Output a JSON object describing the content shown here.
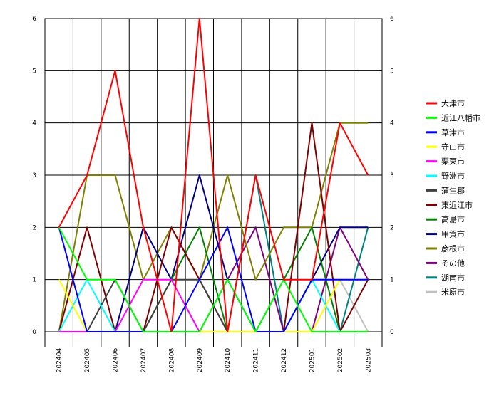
{
  "chart_data": {
    "type": "line",
    "categories": [
      "202404",
      "202405",
      "202406",
      "202407",
      "202408",
      "202409",
      "202410",
      "202411",
      "202412",
      "202501",
      "202502",
      "202503"
    ],
    "ylim": [
      0,
      6
    ],
    "yticks": [
      "0",
      "1",
      "2",
      "3",
      "4",
      "5",
      "6"
    ],
    "grid": true,
    "legend_position": "right",
    "series": [
      {
        "name": "大津市",
        "color": "#ff0000",
        "values": [
          2,
          3,
          5,
          2,
          0,
          6,
          0,
          3,
          1,
          1,
          4,
          3
        ]
      },
      {
        "name": "近江八幡市",
        "color": "#00ff00",
        "values": [
          2,
          1,
          1,
          0,
          0,
          0,
          1,
          0,
          1,
          0,
          0,
          0
        ]
      },
      {
        "name": "草津市",
        "color": "#0000ff",
        "values": [
          2,
          0,
          0,
          0,
          0,
          1,
          2,
          0,
          0,
          1,
          1,
          1
        ]
      },
      {
        "name": "守山市",
        "color": "#ffff00",
        "values": [
          1,
          0,
          0,
          0,
          0,
          0,
          0,
          0,
          0,
          0,
          1,
          1
        ]
      },
      {
        "name": "栗東市",
        "color": "#ff00ff",
        "values": [
          0,
          0,
          0,
          1,
          1,
          0,
          0,
          0,
          0,
          0,
          0,
          0
        ]
      },
      {
        "name": "野洲市",
        "color": "#00ffff",
        "values": [
          0,
          1,
          0,
          0,
          0,
          0,
          0,
          0,
          0,
          1,
          0,
          0
        ]
      },
      {
        "name": "蒲生郡",
        "color": "#404040",
        "values": [
          0,
          0,
          1,
          0,
          1,
          1,
          0,
          0,
          0,
          0,
          0,
          0
        ]
      },
      {
        "name": "東近江市",
        "color": "#800000",
        "values": [
          0,
          2,
          0,
          0,
          2,
          1,
          0,
          0,
          0,
          4,
          0,
          1
        ]
      },
      {
        "name": "高島市",
        "color": "#008000",
        "values": [
          0,
          0,
          0,
          0,
          1,
          2,
          0,
          0,
          1,
          2,
          0,
          0
        ]
      },
      {
        "name": "甲賀市",
        "color": "#000080",
        "values": [
          0,
          0,
          0,
          2,
          1,
          3,
          1,
          0,
          0,
          1,
          2,
          2
        ]
      },
      {
        "name": "彦根市",
        "color": "#808000",
        "values": [
          0,
          3,
          3,
          1,
          2,
          1,
          3,
          1,
          2,
          2,
          4,
          4
        ]
      },
      {
        "name": "その他",
        "color": "#800080",
        "values": [
          0,
          0,
          0,
          0,
          0,
          0,
          1,
          2,
          0,
          0,
          2,
          1
        ]
      },
      {
        "name": "湖南市",
        "color": "#008080",
        "values": [
          0,
          0,
          0,
          0,
          0,
          0,
          0,
          3,
          0,
          0,
          0,
          2
        ]
      },
      {
        "name": "米原市",
        "color": "#c0c0c0",
        "values": [
          0,
          0,
          0,
          0,
          0,
          0,
          0,
          0,
          0,
          0,
          1,
          0
        ]
      }
    ]
  }
}
